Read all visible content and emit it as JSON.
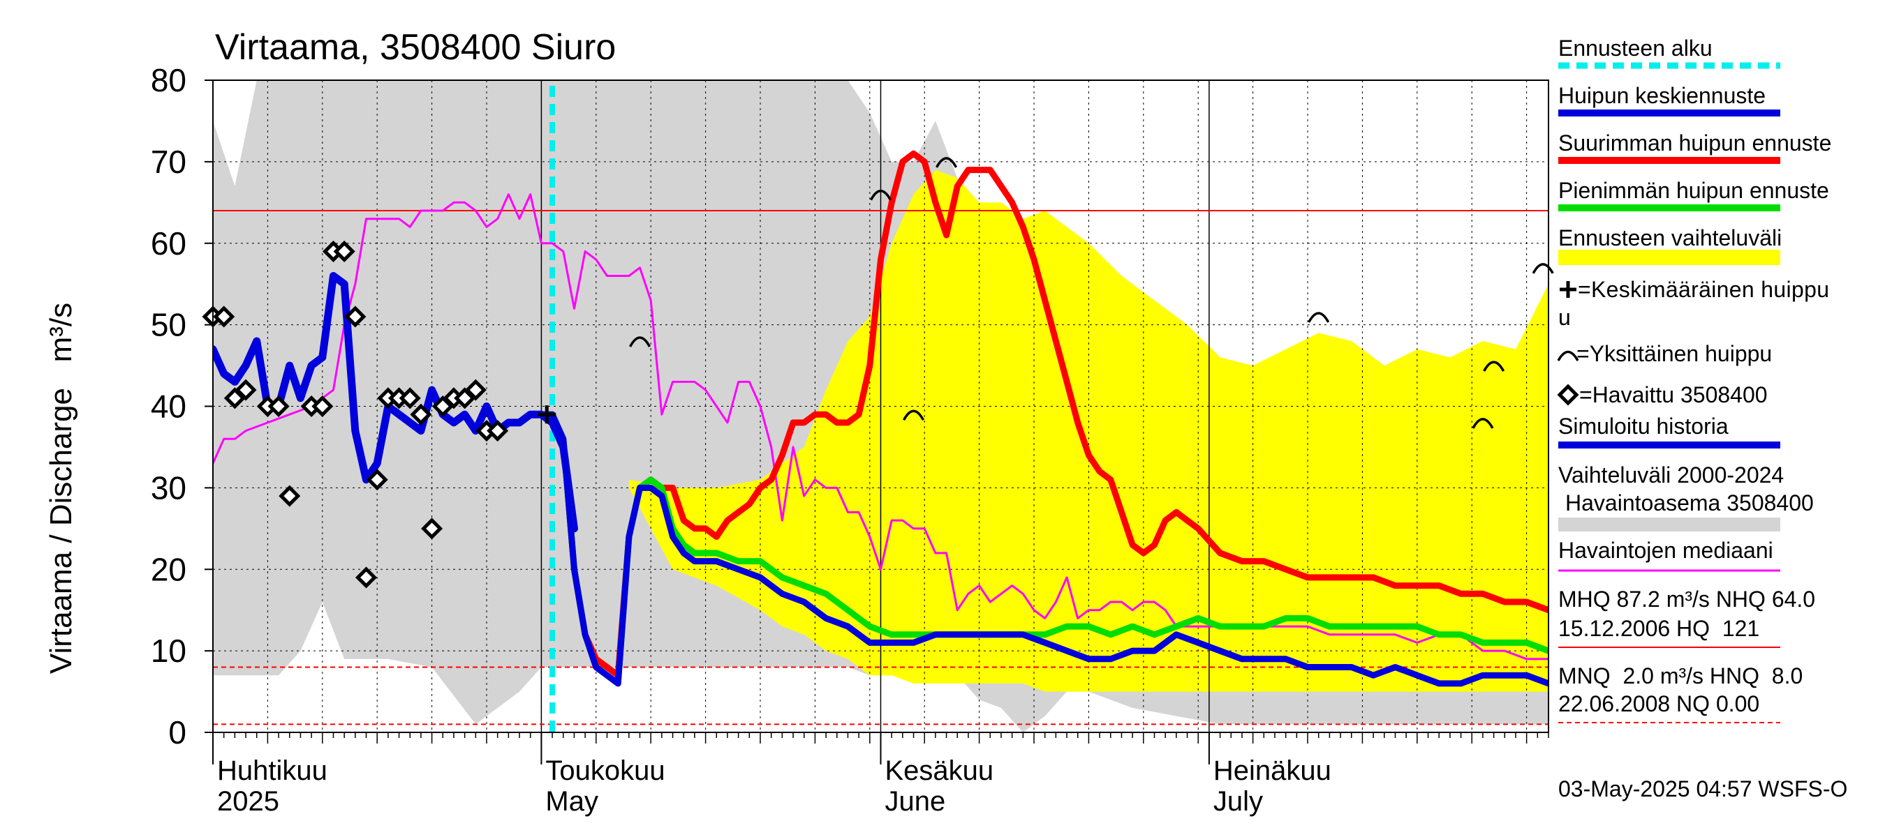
{
  "chart_data": {
    "type": "line",
    "title": "Virtaama, 3508400 Siuro",
    "ylabel": "Virtaama / Discharge   m³/s",
    "ylim": [
      0,
      80
    ],
    "yticks": [
      0,
      10,
      20,
      30,
      40,
      50,
      60,
      70,
      80
    ],
    "x_unit": "day index (0 = 1 Apr 2025)",
    "xlim": [
      0,
      122
    ],
    "month_labels": [
      {
        "day": 0,
        "fi": "Huhtikuu",
        "en": "2025"
      },
      {
        "day": 30,
        "fi": "Toukokuu",
        "en": "May"
      },
      {
        "day": 61,
        "fi": "Kesäkuu",
        "en": "June"
      },
      {
        "day": 91,
        "fi": "Heinäkuu",
        "en": "July"
      }
    ],
    "forecast_start_day": 31,
    "reference_lines": [
      {
        "name": "NHQ",
        "value": 64.0,
        "style": "solid"
      },
      {
        "name": "HNQ",
        "value": 8.0,
        "style": "dashed"
      },
      {
        "name": "NQ-line",
        "value": 1.0,
        "style": "dashed"
      }
    ],
    "series": [
      {
        "name": "Vaihteluväli 2000-2024 Havaintoasema 3508400",
        "kind": "band",
        "color": "#d4d4d4",
        "x": [
          0,
          2,
          4,
          6,
          8,
          10,
          12,
          16,
          20,
          24,
          28,
          30,
          32,
          35,
          38,
          41,
          44,
          47,
          50,
          53,
          56,
          58,
          60,
          62,
          64,
          66,
          68,
          70,
          72,
          74,
          76,
          78,
          80,
          84,
          88,
          92,
          96,
          100,
          104,
          108,
          112,
          116,
          120,
          122
        ],
        "upper": [
          75,
          67,
          80,
          80,
          80,
          80,
          80,
          80,
          80,
          80,
          80,
          80,
          80,
          80,
          80,
          80,
          80,
          80,
          80,
          80,
          80,
          80,
          76,
          70,
          70,
          75,
          68,
          60,
          55,
          45,
          52,
          47,
          45,
          52,
          40,
          35,
          36,
          38,
          35,
          30,
          30,
          28,
          42,
          45
        ],
        "lower": [
          7,
          7,
          7,
          7,
          10,
          16,
          9,
          9,
          8,
          1,
          5,
          8,
          8,
          8,
          8,
          8,
          8,
          8,
          8,
          8,
          8,
          8,
          7,
          7,
          7,
          7,
          7,
          4,
          3,
          0,
          2,
          5,
          5,
          3,
          2,
          1,
          1,
          1,
          1,
          1,
          1,
          1,
          1,
          1
        ]
      },
      {
        "name": "Ennusteen vaihteluväli",
        "kind": "band",
        "color": "#ffff00",
        "x": [
          38,
          42,
          46,
          50,
          52,
          54,
          56,
          58,
          60,
          62,
          64,
          66,
          68,
          70,
          72,
          74,
          76,
          78,
          80,
          83,
          86,
          89,
          92,
          95,
          98,
          101,
          104,
          107,
          110,
          113,
          116,
          119,
          122
        ],
        "upper": [
          31,
          30,
          30,
          31,
          33,
          35,
          42,
          48,
          51,
          60,
          66,
          69,
          68,
          65,
          65,
          63,
          64,
          62,
          60,
          56,
          53,
          50,
          46,
          45,
          47,
          49,
          48,
          45,
          47,
          46,
          48,
          47,
          55
        ],
        "lower": [
          30,
          20,
          18,
          15,
          13,
          12,
          10,
          9,
          7,
          7,
          6,
          6,
          6,
          6,
          6,
          6,
          5,
          5,
          5,
          5,
          5,
          5,
          5,
          5,
          5,
          5,
          5,
          5,
          5,
          5,
          5,
          5,
          5
        ]
      },
      {
        "name": "Havaintojen mediaani",
        "kind": "line",
        "color": "#ff00ff",
        "x": [
          0,
          1,
          2,
          3,
          5,
          7,
          9,
          11,
          12,
          13,
          14,
          15,
          17,
          18,
          19,
          20,
          21,
          22,
          23,
          24,
          25,
          26,
          27,
          28,
          29,
          30,
          31,
          32,
          33,
          34,
          35,
          36,
          38,
          39,
          40,
          41,
          42,
          43,
          44,
          45,
          46,
          47,
          48,
          49,
          50,
          51,
          52,
          53,
          54,
          55,
          56,
          57,
          58,
          59,
          60,
          61,
          62,
          63,
          64,
          65,
          66,
          67,
          68,
          69,
          70,
          71,
          72,
          73,
          74,
          75,
          76,
          77,
          78,
          79,
          80,
          81,
          82,
          83,
          84,
          85,
          86,
          87,
          88,
          90,
          92,
          94,
          96,
          98,
          100,
          102,
          104,
          106,
          108,
          110,
          112,
          114,
          116,
          118,
          120,
          122
        ],
        "y": [
          33,
          36,
          36,
          37,
          38,
          39,
          40,
          42,
          50,
          55,
          63,
          63,
          63,
          62,
          64,
          64,
          64,
          65,
          65,
          64,
          62,
          63,
          66,
          63,
          66,
          60,
          60,
          59,
          52,
          59,
          58,
          56,
          56,
          57,
          53,
          39,
          43,
          43,
          43,
          42,
          40,
          38,
          43,
          43,
          40,
          35,
          26,
          35,
          29,
          31,
          30,
          30,
          27,
          27,
          24,
          20,
          26,
          26,
          25,
          25,
          22,
          22,
          15,
          17,
          18,
          16,
          17,
          18,
          17,
          15,
          14,
          16,
          19,
          14,
          15,
          15,
          16,
          16,
          15,
          16,
          16,
          15,
          13,
          13,
          13,
          13,
          13,
          13,
          13,
          12,
          12,
          12,
          12,
          11,
          12,
          12,
          10,
          10,
          9,
          9
        ]
      },
      {
        "name": "Simuloitu historia",
        "kind": "line",
        "color": "#0000dd",
        "x": [
          0,
          1,
          2,
          3,
          4,
          5,
          6,
          7,
          8,
          9,
          10,
          11,
          12,
          13,
          14,
          15,
          16,
          17,
          18,
          19,
          20,
          21,
          22,
          23,
          24,
          25,
          26,
          27,
          28,
          29,
          30,
          31,
          32,
          33
        ],
        "y": [
          47,
          44,
          43,
          45,
          48,
          40,
          40,
          45,
          41,
          45,
          46,
          56,
          55,
          37,
          31,
          33,
          40,
          39,
          38,
          37,
          42,
          39,
          38,
          39,
          37,
          40,
          37,
          38,
          38,
          39,
          39,
          38,
          35,
          25
        ]
      },
      {
        "name": "Suurimman huipun ennuste",
        "kind": "line",
        "color": "#ff0000",
        "x": [
          30,
          31,
          32,
          33,
          34,
          35,
          36,
          37,
          38,
          39,
          40,
          41,
          42,
          43,
          44,
          45,
          46,
          47,
          48,
          49,
          50,
          51,
          52,
          53,
          54,
          55,
          56,
          57,
          58,
          59,
          60,
          61,
          62,
          63,
          64,
          65,
          66,
          67,
          68,
          69,
          70,
          71,
          72,
          73,
          74,
          75,
          76,
          77,
          78,
          79,
          80,
          81,
          82,
          83,
          84,
          85,
          86,
          87,
          88,
          89,
          90,
          92,
          94,
          96,
          98,
          100,
          102,
          104,
          106,
          108,
          110,
          112,
          114,
          116,
          118,
          120,
          122
        ],
        "y": [
          39,
          39,
          36,
          20,
          12,
          9,
          8,
          7,
          24,
          30,
          31,
          30,
          30,
          26,
          25,
          25,
          24,
          26,
          27,
          28,
          30,
          31,
          34,
          38,
          38,
          39,
          39,
          38,
          38,
          39,
          45,
          58,
          65,
          70,
          71,
          70,
          65,
          61,
          67,
          69,
          69,
          69,
          67,
          65,
          62,
          58,
          53,
          48,
          43,
          38,
          34,
          32,
          31,
          27,
          23,
          22,
          23,
          26,
          27,
          26,
          25,
          22,
          21,
          21,
          20,
          19,
          19,
          19,
          19,
          18,
          18,
          18,
          17,
          17,
          16,
          16,
          15
        ]
      },
      {
        "name": "Pienimmän huipun ennuste",
        "kind": "line",
        "color": "#00dd00",
        "x": [
          30,
          31,
          32,
          33,
          34,
          35,
          36,
          37,
          38,
          39,
          40,
          41,
          42,
          43,
          44,
          46,
          48,
          50,
          52,
          54,
          56,
          58,
          60,
          62,
          64,
          66,
          68,
          70,
          72,
          74,
          76,
          78,
          80,
          82,
          84,
          86,
          88,
          90,
          92,
          94,
          96,
          98,
          100,
          102,
          104,
          106,
          108,
          110,
          112,
          114,
          116,
          118,
          120,
          122
        ],
        "y": [
          39,
          39,
          36,
          20,
          12,
          8,
          7,
          6,
          24,
          30,
          31,
          30,
          25,
          23,
          22,
          22,
          21,
          21,
          19,
          18,
          17,
          15,
          13,
          12,
          12,
          12,
          12,
          12,
          12,
          12,
          12,
          13,
          13,
          12,
          13,
          12,
          13,
          14,
          13,
          13,
          13,
          14,
          14,
          13,
          13,
          13,
          13,
          13,
          12,
          12,
          11,
          11,
          11,
          10
        ]
      },
      {
        "name": "Huipun keskiennuste",
        "kind": "line",
        "color": "#0000dd",
        "x": [
          30,
          31,
          32,
          33,
          34,
          35,
          36,
          37,
          38,
          39,
          40,
          41,
          42,
          43,
          44,
          46,
          48,
          50,
          52,
          54,
          56,
          58,
          60,
          62,
          64,
          66,
          68,
          70,
          72,
          74,
          76,
          78,
          80,
          82,
          84,
          86,
          88,
          90,
          92,
          94,
          96,
          98,
          100,
          102,
          104,
          106,
          108,
          110,
          112,
          114,
          116,
          118,
          120,
          122
        ],
        "y": [
          39,
          39,
          36,
          20,
          12,
          8,
          7,
          6,
          24,
          30,
          30,
          29,
          24,
          22,
          21,
          21,
          20,
          19,
          17,
          16,
          14,
          13,
          11,
          11,
          11,
          12,
          12,
          12,
          12,
          12,
          11,
          10,
          9,
          9,
          10,
          10,
          12,
          11,
          10,
          9,
          9,
          9,
          8,
          8,
          8,
          7,
          8,
          7,
          6,
          6,
          7,
          7,
          7,
          6
        ]
      }
    ],
    "observed_points": {
      "name": "Havaittu 3508400",
      "x": [
        0,
        1,
        2,
        3,
        5,
        6,
        7,
        9,
        10,
        11,
        12,
        13,
        14,
        15,
        16,
        17,
        18,
        19,
        20,
        21,
        22,
        23,
        24,
        25,
        26
      ],
      "y": [
        51,
        51,
        41,
        42,
        40,
        40,
        29,
        40,
        40,
        59,
        59,
        51,
        19,
        31,
        41,
        41,
        41,
        39,
        25,
        40,
        41,
        41,
        42,
        37,
        37
      ]
    },
    "mean_peak_marker": {
      "name": "Keskimääräinen huippu",
      "x": 30.5,
      "y": 39
    },
    "single_peaks": {
      "name": "Yksittäinen huippu",
      "x": [
        39,
        61,
        64,
        67,
        101,
        116,
        117,
        121.5
      ],
      "y": [
        48,
        66,
        39,
        70,
        51,
        38,
        45,
        57
      ]
    }
  },
  "legend": {
    "items": [
      {
        "label": "Ennusteen alku",
        "kind": "dashed-line",
        "color": "#00eeee"
      },
      {
        "label": "Huipun keskiennuste",
        "kind": "line",
        "color": "#0000dd"
      },
      {
        "label": "Suurimman huipun ennuste",
        "kind": "line",
        "color": "#ff0000"
      },
      {
        "label": "Pienimmän huipun ennuste",
        "kind": "line",
        "color": "#00dd00"
      },
      {
        "label": "Ennusteen vaihteluväli",
        "kind": "band",
        "color": "#ffff00"
      }
    ],
    "mean_peak_label": "=Keskimääräinen huippu",
    "single_peak_label": "=Yksittäinen huippu",
    "observed_label": "=Havaittu 3508400",
    "sim_history_label": "Simuloitu historia",
    "range_label_1": "Vaihteluväli 2000-2024",
    "range_label_2": "Havaintoasema 3508400",
    "median_label": "Havaintojen mediaani",
    "stats_1a": "MHQ 87.2 m³/s NHQ 64.0",
    "stats_1b": "15.12.2006 HQ  121",
    "stats_2a": "MNQ  2.0 m³/s HNQ  8.0",
    "stats_2b": "22.06.2008 NQ 0.00"
  },
  "footer": {
    "timestamp": "03-May-2025 04:57 WSFS-O"
  }
}
